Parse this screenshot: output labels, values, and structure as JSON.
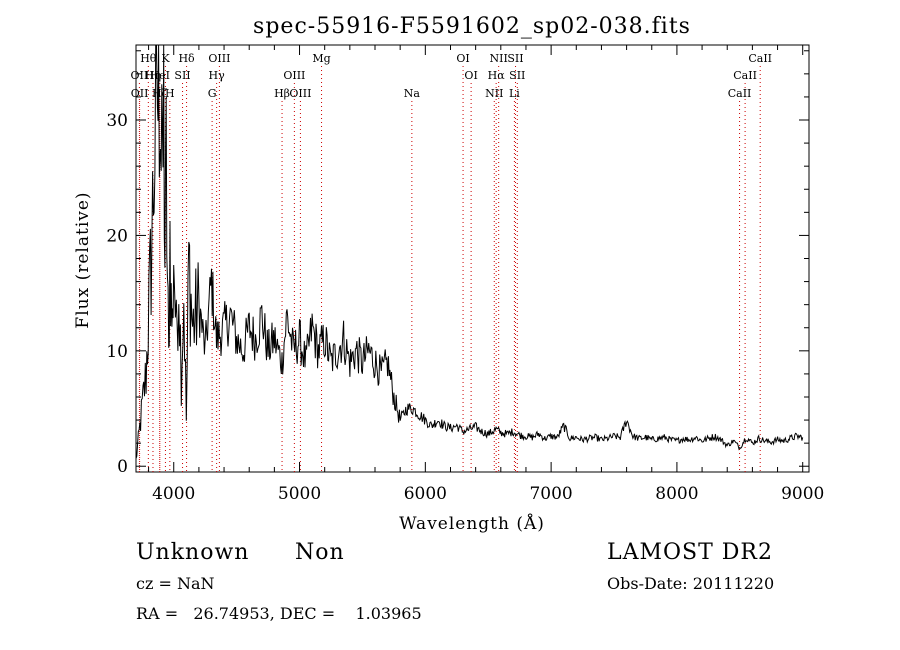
{
  "chart_data": {
    "type": "line",
    "title": "spec-55916-F5591602_sp02-038.fits",
    "xlabel": "Wavelength (Å)",
    "ylabel": "Flux (relative)",
    "xlim": [
      3700,
      9050
    ],
    "ylim": [
      -0.5,
      36.5
    ],
    "x_ticks": [
      4000,
      5000,
      6000,
      7000,
      8000,
      9000
    ],
    "y_ticks": [
      0,
      10,
      20,
      30
    ],
    "grid": false,
    "series": [
      {
        "x": [
          3700,
          3780,
          3820,
          3850,
          3870,
          3880,
          3890,
          3900,
          3905,
          3910,
          3920,
          3930,
          3940,
          3950,
          3960,
          3970,
          3980,
          3990,
          4000,
          4020,
          4040,
          4060,
          4080,
          4100,
          4120,
          4150,
          4200,
          4250,
          4300,
          4340,
          4400,
          4450,
          4500,
          4550,
          4600,
          4650,
          4700,
          4750,
          4800,
          4861,
          4900,
          4950,
          5000,
          5050,
          5100,
          5150,
          5200,
          5250,
          5300,
          5350,
          5400,
          5450,
          5500,
          5550,
          5600,
          5650,
          5700,
          5750,
          5800,
          5850,
          5900,
          5950,
          6000,
          6050,
          6100,
          6150,
          6200,
          6250,
          6300,
          6350,
          6400,
          6450,
          6500,
          6563,
          6600,
          6650,
          6700,
          6750,
          6800,
          6850,
          6900,
          6950,
          7000,
          7050,
          7100,
          7150,
          7200,
          7250,
          7300,
          7350,
          7400,
          7450,
          7500,
          7550,
          7600,
          7650,
          7700,
          7750,
          7800,
          7850,
          7900,
          7950,
          8000,
          8050,
          8100,
          8150,
          8200,
          8250,
          8300,
          8350,
          8400,
          8450,
          8500,
          8550,
          8600,
          8650,
          8700,
          8750,
          8800,
          8850,
          8900,
          8950,
          9000
        ],
        "y": [
          0.5,
          8,
          18,
          28,
          33,
          30,
          35,
          28,
          33,
          22,
          31,
          18,
          26,
          16,
          9,
          20,
          14,
          12,
          19,
          11,
          17,
          8,
          15,
          4,
          18,
          12,
          14,
          10,
          16,
          11,
          12,
          13,
          11,
          10,
          12,
          11,
          13,
          10,
          11,
          9,
          13,
          10,
          11,
          9,
          12,
          10,
          11,
          9,
          10,
          11,
          9,
          10,
          9,
          10,
          9,
          8,
          9,
          6,
          4,
          5,
          5,
          4.5,
          4,
          3.5,
          4,
          3.5,
          3.3,
          3.5,
          3,
          3.2,
          3.4,
          3,
          2.8,
          3.2,
          2.9,
          2.8,
          3,
          2.7,
          2.6,
          2.5,
          2.8,
          2.4,
          2.6,
          2.5,
          3.5,
          2.4,
          2.5,
          2.3,
          2.4,
          2.5,
          2.3,
          2.4,
          2.6,
          2.5,
          4,
          2.6,
          2.4,
          2.5,
          2.3,
          2.4,
          2.5,
          2.3,
          2.2,
          2.4,
          2.3,
          2.5,
          2.2,
          2.4,
          2.6,
          2.3,
          1.8,
          2.2,
          1.6,
          2.5,
          2,
          2.4,
          2.2,
          2.1,
          2.3,
          2.2,
          2.4,
          2.6,
          2.5
        ]
      }
    ],
    "lines": [
      {
        "label": "Hθ",
        "x": 3798,
        "row": 0
      },
      {
        "label": "K",
        "x": 3934,
        "row": 0
      },
      {
        "label": "Hδ",
        "x": 4102,
        "row": 0
      },
      {
        "label": "OIII",
        "x": 4363,
        "row": 0
      },
      {
        "label": "Mg",
        "x": 5175,
        "row": 0
      },
      {
        "label": "OI",
        "x": 6300,
        "row": 0
      },
      {
        "label": "NII",
        "x": 6583,
        "row": 0
      },
      {
        "label": "SII",
        "x": 6717,
        "row": 0
      },
      {
        "label": "CaII",
        "x": 8662,
        "row": 0
      },
      {
        "label": "OII",
        "x": 3727,
        "row": 1
      },
      {
        "label": "Hη",
        "x": 3835,
        "row": 1
      },
      {
        "label": "HeI",
        "x": 3889,
        "row": 1
      },
      {
        "label": "SII",
        "x": 4070,
        "row": 1
      },
      {
        "label": "Hγ",
        "x": 4341,
        "row": 1
      },
      {
        "label": "OIII",
        "x": 4959,
        "row": 1
      },
      {
        "label": "OI",
        "x": 6364,
        "row": 1
      },
      {
        "label": "Hα",
        "x": 6563,
        "row": 1
      },
      {
        "label": "SII",
        "x": 6731,
        "row": 1
      },
      {
        "label": "CaII",
        "x": 8542,
        "row": 1
      },
      {
        "label": "OII",
        "x": 3729,
        "row": 2
      },
      {
        "label": "Hζ",
        "x": 3889,
        "row": 2
      },
      {
        "label": "H",
        "x": 3969,
        "row": 2
      },
      {
        "label": "G",
        "x": 4305,
        "row": 2
      },
      {
        "label": "Hβ",
        "x": 4861,
        "row": 2
      },
      {
        "label": "OIII",
        "x": 5007,
        "row": 2
      },
      {
        "label": "Na",
        "x": 5893,
        "row": 2
      },
      {
        "label": "NII",
        "x": 6548,
        "row": 2
      },
      {
        "label": "Li",
        "x": 6708,
        "row": 2
      },
      {
        "label": "CaII",
        "x": 8498,
        "row": 2
      }
    ]
  },
  "info": {
    "object_class": "Unknown",
    "subclass": "Non",
    "survey": "LAMOST DR2",
    "redshift": "cz = NaN",
    "obs_date": "Obs-Date: 20111220",
    "coords": "RA =   26.74953, DEC =    1.03965"
  }
}
